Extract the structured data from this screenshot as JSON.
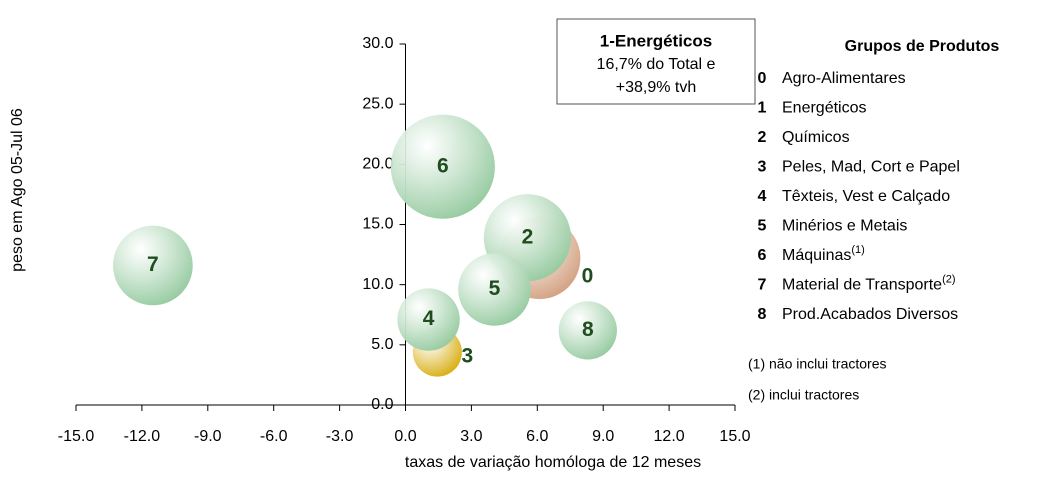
{
  "chart_data": {
    "type": "bubble",
    "xlabel": "taxas de variação homóloga de 12 meses",
    "ylabel": "peso em Ago 05-Jul 06",
    "labels": [
      "0",
      "2",
      "3",
      "4",
      "5",
      "6",
      "7",
      "8"
    ],
    "x": [
      6.1,
      5.55,
      1.45,
      1.05,
      4.05,
      1.7,
      -11.5,
      8.3
    ],
    "values": [
      12.2,
      13.9,
      4.4,
      7.1,
      9.6,
      19.8,
      11.6,
      6.2
    ],
    "sizes": [
      12.2,
      13.9,
      4.4,
      7.1,
      9.6,
      19.8,
      11.6,
      6.2
    ],
    "colors": [
      "#d09a78",
      "#8fc79a",
      "#d4a800",
      "#8fc79a",
      "#8fc79a",
      "#8fc79a",
      "#8fc79a",
      "#8fc79a"
    ],
    "xlim": [
      -15,
      15
    ],
    "xticks": [
      {
        "value": -15,
        "label": "-15.0"
      },
      {
        "value": -12,
        "label": "-12.0"
      },
      {
        "value": -9,
        "label": "-9.0"
      },
      {
        "value": -6,
        "label": "-6.0"
      },
      {
        "value": -3,
        "label": "-3.0"
      },
      {
        "value": 0,
        "label": "0.0"
      },
      {
        "value": 3,
        "label": "3.0"
      },
      {
        "value": 6,
        "label": "6.0"
      },
      {
        "value": 9,
        "label": "9.0"
      },
      {
        "value": 12,
        "label": "12.0"
      },
      {
        "value": 15,
        "label": "15.0"
      }
    ],
    "ylim": [
      0,
      30
    ],
    "yticks": [
      {
        "value": 0,
        "label": "0.0"
      },
      {
        "value": 5,
        "label": "5.0"
      },
      {
        "value": 10,
        "label": "10.0"
      },
      {
        "value": 15,
        "label": "15.0"
      },
      {
        "value": 20,
        "label": "20.0"
      },
      {
        "value": 25,
        "label": "25.0"
      },
      {
        "value": 30,
        "label": "30.0"
      }
    ],
    "annotation": [
      "1-Energéticos",
      "16,7% do Total e",
      "+38,9% tvh"
    ],
    "legend": {
      "title": "Grupos de Produtos",
      "items": [
        {
          "key": "0",
          "name": "Agro-Alimentares"
        },
        {
          "key": "1",
          "name": "Energéticos"
        },
        {
          "key": "2",
          "name": "Químicos"
        },
        {
          "key": "3",
          "name": "Peles, Mad, Cort e Papel"
        },
        {
          "key": "4",
          "name": "Têxteis, Vest e Calçado"
        },
        {
          "key": "5",
          "name": "Minérios e Metais"
        },
        {
          "key": "6",
          "name": "Máquinas",
          "note": "(1)"
        },
        {
          "key": "7",
          "name": "Material de Transporte",
          "note": "(2)"
        },
        {
          "key": "8",
          "name": "Prod.Acabados Diversos"
        }
      ],
      "notes": [
        "(1) não inclui tractores",
        "(2) inclui tractores"
      ]
    }
  }
}
